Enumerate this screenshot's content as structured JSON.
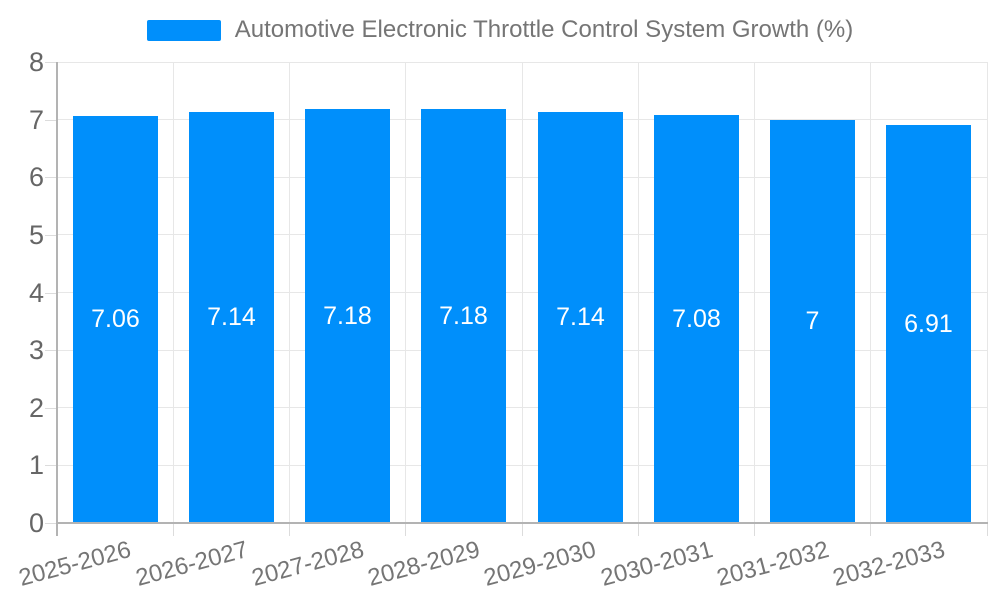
{
  "legend": {
    "label": "Automotive Electronic Throttle Control System Growth (%)"
  },
  "colors": {
    "bar": "#008FFB",
    "grid": "#e7e7e7",
    "axis": "#b3b3b3",
    "y_label_text": "#666666",
    "x_label_text": "#757575",
    "legend_text": "#757575",
    "value_label_text": "#ffffff",
    "background": "#ffffff"
  },
  "chart_data": {
    "type": "bar",
    "title": "Automotive Electronic Throttle Control System Growth (%)",
    "categories": [
      "2025-2026",
      "2026-2027",
      "2027-2028",
      "2028-2029",
      "2029-2030",
      "2030-2031",
      "2031-2032",
      "2032-2033"
    ],
    "values": [
      7.06,
      7.14,
      7.18,
      7.18,
      7.14,
      7.08,
      7,
      6.91
    ],
    "value_labels": [
      "7.06",
      "7.14",
      "7.18",
      "7.18",
      "7.14",
      "7.08",
      "7",
      "6.91"
    ],
    "xlabel": "",
    "ylabel": "",
    "ylim": [
      0,
      8
    ],
    "yticks": [
      0,
      1,
      2,
      3,
      4,
      5,
      6,
      7,
      8
    ],
    "grid": true,
    "legend_position": "top",
    "x_label_rotation_deg": -15,
    "value_label_position": "center"
  }
}
